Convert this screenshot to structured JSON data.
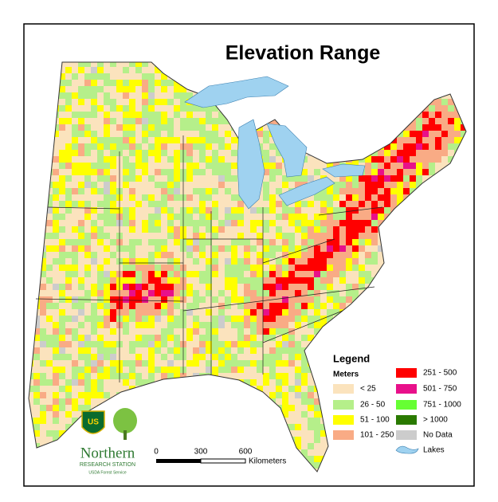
{
  "title": "Elevation Range",
  "legend": {
    "title": "Legend",
    "units": "Meters",
    "items": [
      {
        "label": "< 25",
        "color": "#fbe3bd"
      },
      {
        "label": "26 - 50",
        "color": "#b5ef8a"
      },
      {
        "label": "51 - 100",
        "color": "#ffff00"
      },
      {
        "label": "101 - 250",
        "color": "#f9ab85"
      },
      {
        "label": "251 - 500",
        "color": "#ff0000"
      },
      {
        "label": "501 - 750",
        "color": "#e8108a"
      },
      {
        "label": "751 - 1000",
        "color": "#66ff33"
      },
      {
        "label": "> 1000",
        "color": "#2a7a00"
      },
      {
        "label": "No Data",
        "color": "#cccccc"
      },
      {
        "label": "Lakes",
        "color": "#9fd2f0"
      }
    ]
  },
  "scale_bar": {
    "labels": [
      "0",
      "300",
      "600"
    ],
    "unit": "Kilometers"
  },
  "logo": {
    "shield": "US",
    "name": "Northern",
    "subtitle": "RESEARCH STATION",
    "agency": "USDA Forest Service"
  }
}
